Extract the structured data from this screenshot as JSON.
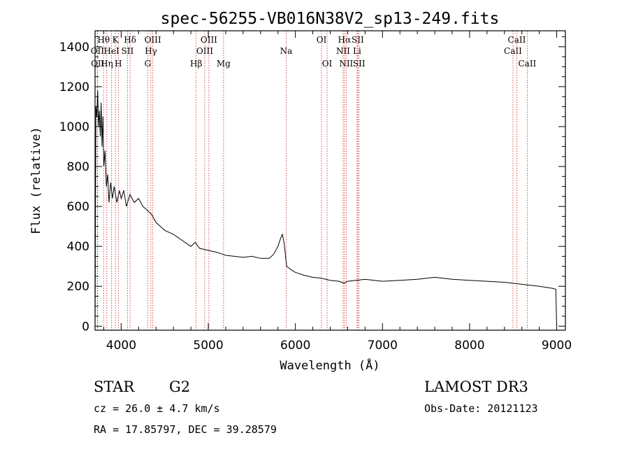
{
  "chart_data": {
    "type": "line",
    "title": "spec-56255-VB016N38V2_sp13-249.fits",
    "xlabel": "Wavelength (Å)",
    "ylabel": "Flux (relative)",
    "xlim": [
      3700,
      9100
    ],
    "ylim": [
      -20,
      1480
    ],
    "xticks": [
      4000,
      5000,
      6000,
      7000,
      8000,
      9000
    ],
    "yticks": [
      0,
      200,
      400,
      600,
      800,
      1000,
      1200,
      1400
    ],
    "series": [
      {
        "name": "flux",
        "x": [
          3700,
          3710,
          3720,
          3730,
          3740,
          3750,
          3760,
          3770,
          3780,
          3790,
          3800,
          3815,
          3830,
          3845,
          3860,
          3880,
          3900,
          3920,
          3950,
          3980,
          4000,
          4030,
          4060,
          4100,
          4150,
          4200,
          4250,
          4300,
          4350,
          4400,
          4450,
          4500,
          4600,
          4700,
          4800,
          4850,
          4900,
          5000,
          5100,
          5200,
          5300,
          5400,
          5500,
          5600,
          5700,
          5750,
          5800,
          5830,
          5850,
          5870,
          5880,
          5890,
          5900,
          5930,
          5960,
          6000,
          6100,
          6200,
          6300,
          6400,
          6500,
          6560,
          6600,
          6700,
          6800,
          7000,
          7200,
          7400,
          7600,
          7700,
          7800,
          8000,
          8200,
          8400,
          8600,
          8800,
          8950,
          8990,
          9000
        ],
        "values": [
          0,
          1100,
          1050,
          1180,
          1000,
          1080,
          950,
          1120,
          900,
          1050,
          800,
          880,
          700,
          760,
          620,
          720,
          640,
          700,
          620,
          680,
          640,
          680,
          600,
          660,
          620,
          640,
          600,
          580,
          560,
          520,
          500,
          480,
          460,
          430,
          400,
          420,
          390,
          380,
          370,
          355,
          350,
          345,
          350,
          340,
          340,
          360,
          400,
          440,
          460,
          420,
          380,
          340,
          300,
          290,
          280,
          270,
          255,
          245,
          240,
          230,
          225,
          215,
          225,
          230,
          235,
          225,
          230,
          235,
          245,
          240,
          235,
          230,
          225,
          220,
          210,
          200,
          190,
          185,
          0
        ]
      }
    ],
    "lines": [
      {
        "name": "OII",
        "wavelength": 3727,
        "row": 2
      },
      {
        "name": "OII",
        "wavelength": 3730,
        "row": 3
      },
      {
        "name": "Hθ",
        "wavelength": 3798,
        "row": 1
      },
      {
        "name": "Hη",
        "wavelength": 3835,
        "row": 3
      },
      {
        "name": "HeI",
        "wavelength": 3889,
        "row": 2
      },
      {
        "name": "K",
        "wavelength": 3934,
        "row": 1
      },
      {
        "name": "H",
        "wavelength": 3968,
        "row": 3
      },
      {
        "name": "SII",
        "wavelength": 4072,
        "row": 2
      },
      {
        "name": "Hδ",
        "wavelength": 4102,
        "row": 1
      },
      {
        "name": "G",
        "wavelength": 4305,
        "row": 3
      },
      {
        "name": "Hγ",
        "wavelength": 4341,
        "row": 2
      },
      {
        "name": "OIII",
        "wavelength": 4363,
        "row": 1
      },
      {
        "name": "Hβ",
        "wavelength": 4861,
        "row": 3
      },
      {
        "name": "OIII",
        "wavelength": 4959,
        "row": 2
      },
      {
        "name": "OIII",
        "wavelength": 5007,
        "row": 1
      },
      {
        "name": "Mg",
        "wavelength": 5175,
        "row": 3
      },
      {
        "name": "Na",
        "wavelength": 5894,
        "row": 2
      },
      {
        "name": "OI",
        "wavelength": 6300,
        "row": 1
      },
      {
        "name": "OI",
        "wavelength": 6364,
        "row": 3
      },
      {
        "name": "NII",
        "wavelength": 6548,
        "row": 2
      },
      {
        "name": "Hα",
        "wavelength": 6563,
        "row": 1
      },
      {
        "name": "NII",
        "wavelength": 6583,
        "row": 3
      },
      {
        "name": "Li",
        "wavelength": 6708,
        "row": 2
      },
      {
        "name": "SII",
        "wavelength": 6716,
        "row": 1
      },
      {
        "name": "SII",
        "wavelength": 6731,
        "row": 3
      },
      {
        "name": "CaII",
        "wavelength": 8498,
        "row": 2
      },
      {
        "name": "CaII",
        "wavelength": 8542,
        "row": 1
      },
      {
        "name": "CaII",
        "wavelength": 8662,
        "row": 3
      }
    ]
  },
  "footer": {
    "star": "STAR",
    "subclass": "G2",
    "survey": "LAMOST DR3",
    "cz": "cz = 26.0 ± 4.7 km/s",
    "obs_date": "Obs-Date: 20121123",
    "coords": "RA =  17.85797, DEC =  39.28579"
  },
  "colors": {
    "line_markers": "#cc2222",
    "spectrum": "#000000",
    "axes": "#000000"
  }
}
